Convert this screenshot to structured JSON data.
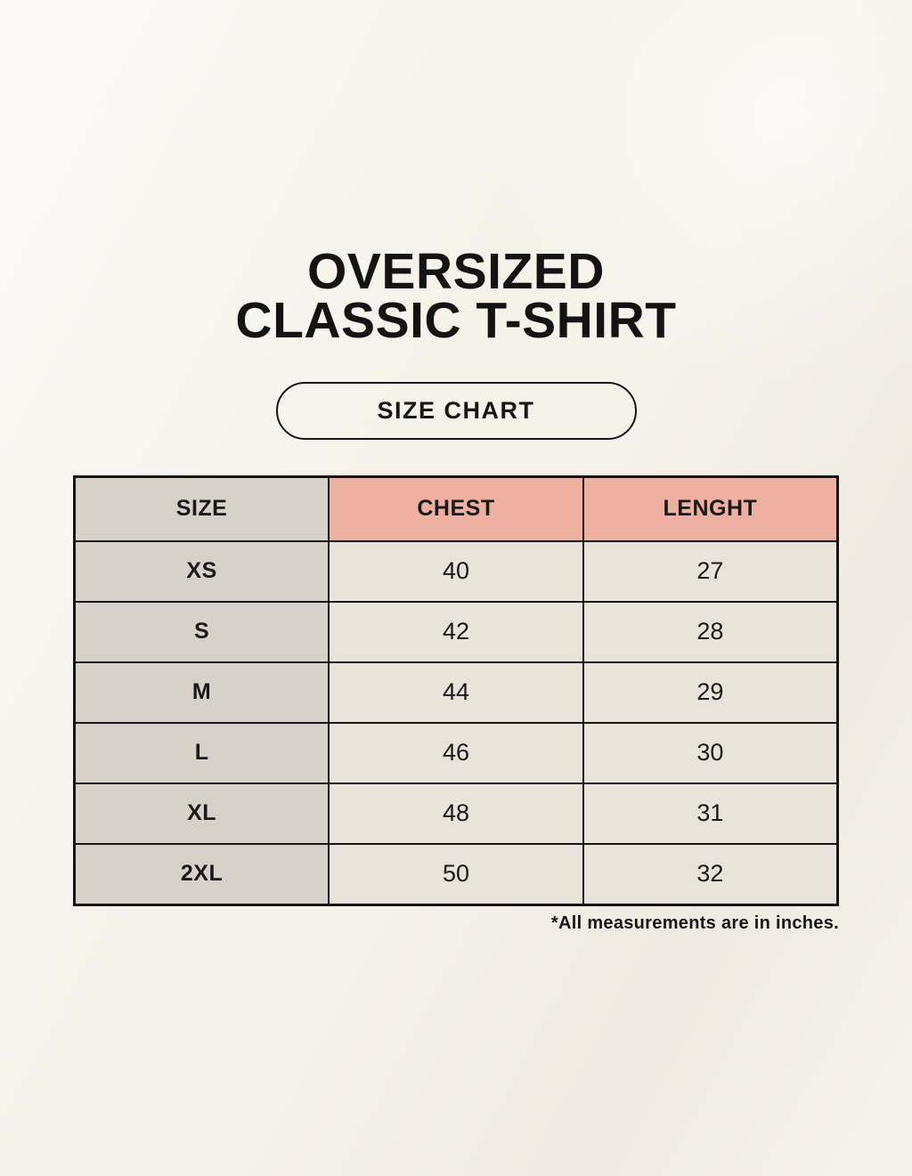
{
  "header": {
    "title_line1": "OVERSIZED",
    "title_line2": "CLASSIC T-SHIRT",
    "badge_label": "SIZE CHART"
  },
  "chart_data": {
    "type": "table",
    "title": "OVERSIZED CLASSIC T-SHIRT",
    "columns": [
      "SIZE",
      "CHEST",
      "LENGHT"
    ],
    "rows": [
      [
        "XS",
        "40",
        "27"
      ],
      [
        "S",
        "42",
        "28"
      ],
      [
        "M",
        "44",
        "29"
      ],
      [
        "L",
        "46",
        "30"
      ],
      [
        "XL",
        "48",
        "31"
      ],
      [
        "2XL",
        "50",
        "32"
      ]
    ],
    "footnote": "*All measurements are in inches."
  },
  "colors": {
    "background": "#f5f2ea",
    "cell_background": "#e9e3d9",
    "size_column_background": "#d7d1ca",
    "header_accent": "#eeb0a1",
    "border": "#151515",
    "text": "#191919"
  }
}
